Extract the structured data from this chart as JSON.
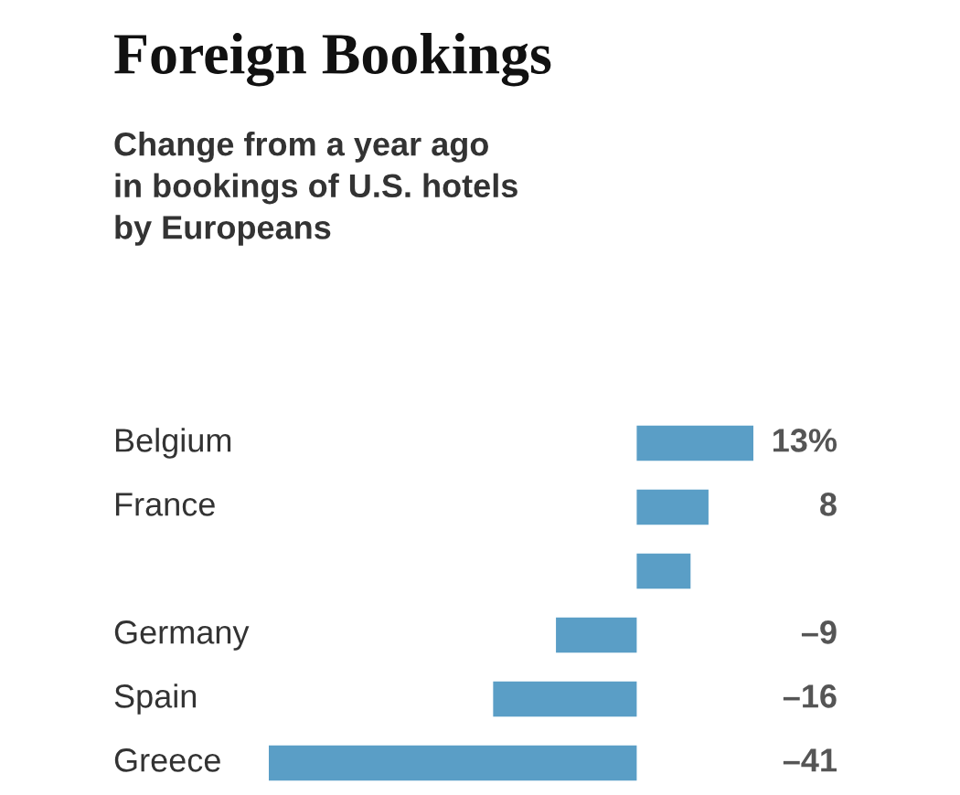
{
  "chart_data": {
    "type": "bar",
    "orientation": "horizontal",
    "title": "Foreign Bookings",
    "subtitle": "Change from a year ago\nin bookings of U.S. hotels\nby Europeans",
    "categories": [
      "Belgium",
      "France",
      null,
      "Germany",
      "Spain",
      "Greece"
    ],
    "values": [
      13,
      8,
      6,
      -9,
      -16,
      -41
    ],
    "value_labels": [
      "13%",
      "8",
      null,
      "–9",
      "–16",
      "–41"
    ],
    "color": "#5a9ec6"
  }
}
